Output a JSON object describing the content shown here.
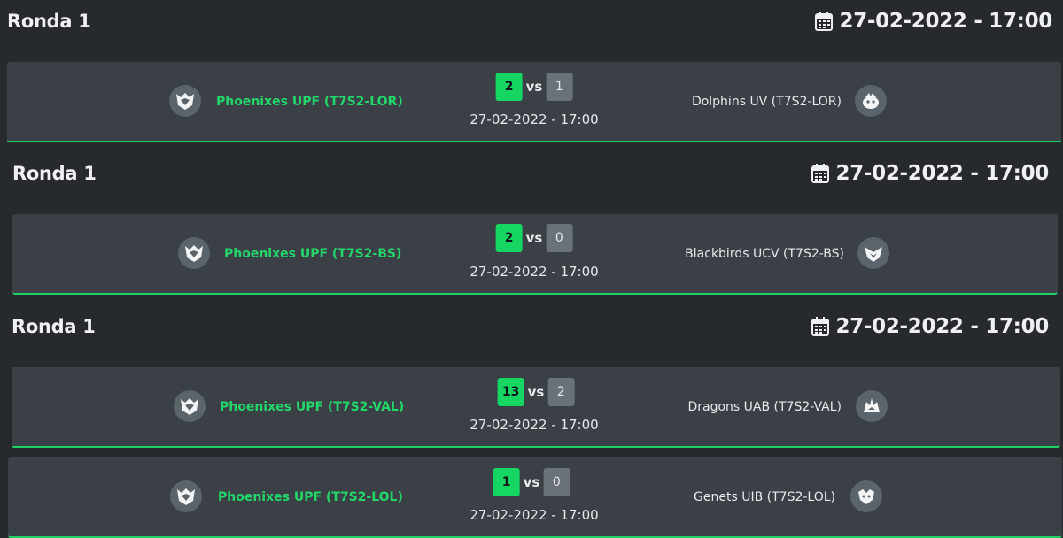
{
  "rounds": [
    {
      "title": "Ronda 1",
      "date": "27-02-2022 - 17:00",
      "matches": [
        {
          "home": "Phoenixes UPF (T7S2-LOR)",
          "home_score": "2",
          "vs": "vs",
          "away_score": "1",
          "date": "27-02-2022 - 17:00",
          "away": "Dolphins UV (T7S2-LOR)"
        }
      ]
    },
    {
      "title": "Ronda 1",
      "date": "27-02-2022 - 17:00",
      "matches": [
        {
          "home": "Phoenixes UPF (T7S2-BS)",
          "home_score": "2",
          "vs": "vs",
          "away_score": "0",
          "date": "27-02-2022 - 17:00",
          "away": "Blackbirds UCV (T7S2-BS)"
        }
      ]
    },
    {
      "title": "Ronda 1",
      "date": "27-02-2022 - 17:00",
      "matches": [
        {
          "home": "Phoenixes UPF (T7S2-VAL)",
          "home_score": "13",
          "vs": "vs",
          "away_score": "2",
          "date": "27-02-2022 - 17:00",
          "away": "Dragons UAB (T7S2-VAL)"
        },
        {
          "home": "Phoenixes UPF (T7S2-LOL)",
          "home_score": "1",
          "vs": "vs",
          "away_score": "0",
          "date": "27-02-2022 - 17:00",
          "away": "Genets UIB (T7S2-LOL)"
        }
      ]
    }
  ],
  "icons": {
    "calendar": "calendar-icon",
    "home_logo": "phoenixes-logo-icon",
    "away_logos": [
      "dolphins-logo-icon",
      "blackbirds-logo-icon",
      "dragons-logo-icon",
      "genets-logo-icon"
    ]
  },
  "colors": {
    "background": "#262a2d",
    "card": "#3a4046",
    "accent_green": "#1fd065",
    "winner_badge": "#15d662",
    "loser_badge": "#6a7178",
    "logo_circle": "#5b636b"
  }
}
